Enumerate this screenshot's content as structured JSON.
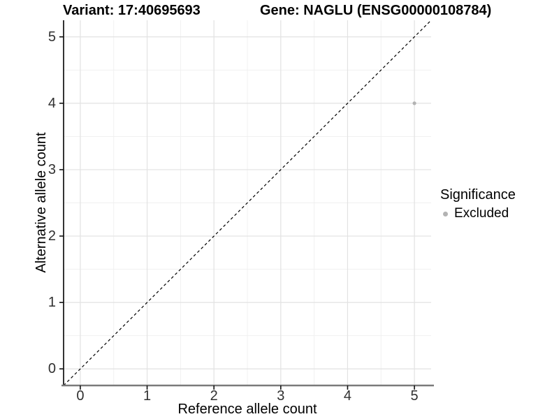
{
  "titles": {
    "variant": "Variant: 17:40695693",
    "gene": "Gene: NAGLU (ENSG00000108784)"
  },
  "chart_data": {
    "type": "scatter",
    "xlabel": "Reference allele count",
    "ylabel": "Alternative allele count",
    "xlim": [
      -0.25,
      5.25
    ],
    "ylim": [
      -0.25,
      5.25
    ],
    "x_ticks": [
      0,
      1,
      2,
      3,
      4,
      5
    ],
    "y_ticks": [
      0,
      1,
      2,
      3,
      4,
      5
    ],
    "x_minor_ticks": [
      0.5,
      1.5,
      2.5,
      3.5,
      4.5
    ],
    "y_minor_ticks": [
      0.5,
      1.5,
      2.5,
      3.5,
      4.5
    ],
    "grid": true,
    "background": "#ffffff",
    "major_grid_color": "#e2e2e2",
    "minor_grid_color": "#efefef",
    "left_axis_color": "#333333",
    "bottom_axis_color": "#7a7a7a",
    "tick_color": "#111111",
    "identity_line": {
      "show": true,
      "color": "#000000",
      "style": "dashed"
    },
    "points": [
      {
        "x": 5,
        "y": 4,
        "significance": "Excluded",
        "color": "#b3b3b3",
        "radius": 2.6
      }
    ],
    "legend": {
      "title": "Significance",
      "position": "right",
      "items": [
        {
          "label": "Excluded",
          "color": "#b3b3b3"
        }
      ]
    }
  }
}
